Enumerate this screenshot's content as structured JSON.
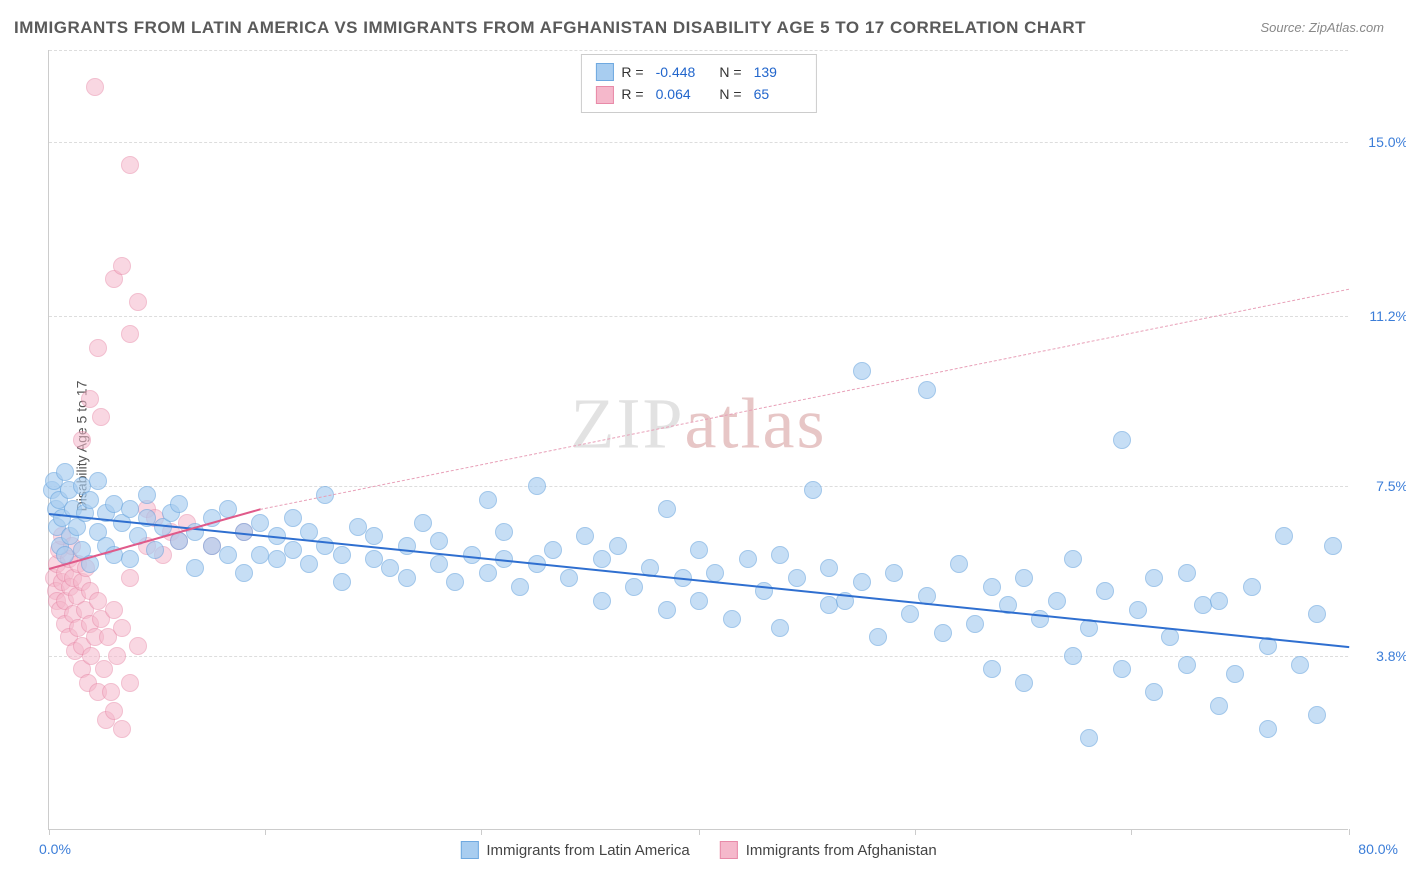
{
  "title": "IMMIGRANTS FROM LATIN AMERICA VS IMMIGRANTS FROM AFGHANISTAN DISABILITY AGE 5 TO 17 CORRELATION CHART",
  "source": "Source: ZipAtlas.com",
  "ylabel": "Disability Age 5 to 17",
  "watermark_a": "ZIP",
  "watermark_b": "atlas",
  "chart": {
    "type": "scatter",
    "xlim": [
      0,
      80
    ],
    "ylim": [
      0,
      17
    ],
    "xtick_left": "0.0%",
    "xtick_right": "80.0%",
    "xtick_positions": [
      0,
      13.3,
      26.6,
      40,
      53.3,
      66.6,
      80
    ],
    "yticks": [
      {
        "v": 15.0,
        "label": "15.0%"
      },
      {
        "v": 11.2,
        "label": "11.2%"
      },
      {
        "v": 7.5,
        "label": "7.5%"
      },
      {
        "v": 3.8,
        "label": "3.8%"
      }
    ],
    "background_color": "#ffffff",
    "grid_color": "#dddddd",
    "series": [
      {
        "id": "latin",
        "label": "Immigrants from Latin America",
        "marker_radius": 9,
        "fill": "#a8cdf0",
        "fill_opacity": 0.65,
        "stroke": "#6fa9e0",
        "R": "-0.448",
        "N": "139",
        "trend": {
          "x1": 0,
          "y1": 6.9,
          "x2": 80,
          "y2": 4.0,
          "color": "#2f6fd0",
          "width": 2
        },
        "points": [
          [
            0.2,
            7.4
          ],
          [
            0.3,
            7.6
          ],
          [
            0.4,
            7.0
          ],
          [
            0.5,
            6.6
          ],
          [
            0.6,
            7.2
          ],
          [
            0.7,
            6.2
          ],
          [
            0.8,
            6.8
          ],
          [
            1.0,
            7.8
          ],
          [
            1.0,
            6.0
          ],
          [
            1.2,
            7.4
          ],
          [
            1.3,
            6.4
          ],
          [
            1.5,
            7.0
          ],
          [
            1.7,
            6.6
          ],
          [
            2.0,
            7.5
          ],
          [
            2.0,
            6.1
          ],
          [
            2.2,
            6.9
          ],
          [
            2.5,
            7.2
          ],
          [
            2.5,
            5.8
          ],
          [
            3.0,
            6.5
          ],
          [
            3.0,
            7.6
          ],
          [
            3.5,
            6.2
          ],
          [
            3.5,
            6.9
          ],
          [
            4.0,
            7.1
          ],
          [
            4.0,
            6.0
          ],
          [
            4.5,
            6.7
          ],
          [
            5.0,
            7.0
          ],
          [
            5.0,
            5.9
          ],
          [
            5.5,
            6.4
          ],
          [
            6.0,
            6.8
          ],
          [
            6.0,
            7.3
          ],
          [
            6.5,
            6.1
          ],
          [
            7.0,
            6.6
          ],
          [
            7.5,
            6.9
          ],
          [
            8.0,
            6.3
          ],
          [
            8.0,
            7.1
          ],
          [
            9.0,
            6.5
          ],
          [
            9.0,
            5.7
          ],
          [
            10.0,
            6.8
          ],
          [
            10.0,
            6.2
          ],
          [
            11.0,
            6.0
          ],
          [
            11.0,
            7.0
          ],
          [
            12.0,
            6.5
          ],
          [
            12.0,
            5.6
          ],
          [
            13.0,
            6.7
          ],
          [
            13.0,
            6.0
          ],
          [
            14.0,
            6.4
          ],
          [
            14.0,
            5.9
          ],
          [
            15.0,
            6.8
          ],
          [
            15.0,
            6.1
          ],
          [
            16.0,
            5.8
          ],
          [
            16.0,
            6.5
          ],
          [
            17.0,
            6.2
          ],
          [
            17.0,
            7.3
          ],
          [
            18.0,
            6.0
          ],
          [
            18.0,
            5.4
          ],
          [
            19.0,
            6.6
          ],
          [
            20.0,
            5.9
          ],
          [
            20.0,
            6.4
          ],
          [
            21.0,
            5.7
          ],
          [
            22.0,
            6.2
          ],
          [
            22.0,
            5.5
          ],
          [
            23.0,
            6.7
          ],
          [
            24.0,
            5.8
          ],
          [
            24.0,
            6.3
          ],
          [
            25.0,
            5.4
          ],
          [
            26.0,
            6.0
          ],
          [
            27.0,
            7.2
          ],
          [
            27.0,
            5.6
          ],
          [
            28.0,
            5.9
          ],
          [
            28.0,
            6.5
          ],
          [
            29.0,
            5.3
          ],
          [
            30.0,
            7.5
          ],
          [
            30.0,
            5.8
          ],
          [
            31.0,
            6.1
          ],
          [
            32.0,
            5.5
          ],
          [
            33.0,
            6.4
          ],
          [
            34.0,
            5.0
          ],
          [
            34.0,
            5.9
          ],
          [
            35.0,
            6.2
          ],
          [
            36.0,
            5.3
          ],
          [
            37.0,
            5.7
          ],
          [
            38.0,
            7.0
          ],
          [
            38.0,
            4.8
          ],
          [
            39.0,
            5.5
          ],
          [
            40.0,
            6.1
          ],
          [
            40.0,
            5.0
          ],
          [
            41.0,
            5.6
          ],
          [
            42.0,
            4.6
          ],
          [
            43.0,
            5.9
          ],
          [
            44.0,
            5.2
          ],
          [
            45.0,
            6.0
          ],
          [
            45.0,
            4.4
          ],
          [
            46.0,
            5.5
          ],
          [
            47.0,
            7.4
          ],
          [
            48.0,
            4.9
          ],
          [
            48.0,
            5.7
          ],
          [
            49.0,
            5.0
          ],
          [
            50.0,
            5.4
          ],
          [
            50.0,
            10.0
          ],
          [
            51.0,
            4.2
          ],
          [
            52.0,
            5.6
          ],
          [
            53.0,
            4.7
          ],
          [
            54.0,
            9.6
          ],
          [
            54.0,
            5.1
          ],
          [
            55.0,
            4.3
          ],
          [
            56.0,
            5.8
          ],
          [
            57.0,
            4.5
          ],
          [
            58.0,
            5.3
          ],
          [
            58.0,
            3.5
          ],
          [
            59.0,
            4.9
          ],
          [
            60.0,
            5.5
          ],
          [
            60.0,
            3.2
          ],
          [
            61.0,
            4.6
          ],
          [
            62.0,
            5.0
          ],
          [
            63.0,
            3.8
          ],
          [
            63.0,
            5.9
          ],
          [
            64.0,
            4.4
          ],
          [
            64.0,
            2.0
          ],
          [
            65.0,
            5.2
          ],
          [
            66.0,
            3.5
          ],
          [
            66.0,
            8.5
          ],
          [
            67.0,
            4.8
          ],
          [
            68.0,
            5.5
          ],
          [
            68.0,
            3.0
          ],
          [
            69.0,
            4.2
          ],
          [
            70.0,
            5.6
          ],
          [
            70.0,
            3.6
          ],
          [
            71.0,
            4.9
          ],
          [
            72.0,
            5.0
          ],
          [
            72.0,
            2.7
          ],
          [
            73.0,
            3.4
          ],
          [
            74.0,
            5.3
          ],
          [
            75.0,
            4.0
          ],
          [
            75.0,
            2.2
          ],
          [
            76.0,
            6.4
          ],
          [
            77.0,
            3.6
          ],
          [
            78.0,
            4.7
          ],
          [
            78.0,
            2.5
          ],
          [
            79.0,
            6.2
          ]
        ]
      },
      {
        "id": "afghan",
        "label": "Immigrants from Afghanistan",
        "marker_radius": 9,
        "fill": "#f5b8cb",
        "fill_opacity": 0.55,
        "stroke": "#e88aa8",
        "R": "0.064",
        "N": "65",
        "trend_solid": {
          "x1": 0,
          "y1": 5.7,
          "x2": 13,
          "y2": 7.0,
          "color": "#e05a8a",
          "width": 2
        },
        "trend_dash": {
          "x1": 13,
          "y1": 7.0,
          "x2": 80,
          "y2": 11.8,
          "color": "#e8a0b8",
          "width": 1.5
        },
        "points": [
          [
            0.3,
            5.5
          ],
          [
            0.4,
            5.2
          ],
          [
            0.5,
            5.8
          ],
          [
            0.5,
            5.0
          ],
          [
            0.6,
            6.1
          ],
          [
            0.7,
            4.8
          ],
          [
            0.8,
            5.4
          ],
          [
            0.8,
            6.4
          ],
          [
            1.0,
            5.0
          ],
          [
            1.0,
            5.6
          ],
          [
            1.0,
            4.5
          ],
          [
            1.2,
            5.9
          ],
          [
            1.2,
            4.2
          ],
          [
            1.3,
            5.3
          ],
          [
            1.4,
            6.2
          ],
          [
            1.5,
            4.7
          ],
          [
            1.5,
            5.5
          ],
          [
            1.6,
            3.9
          ],
          [
            1.7,
            5.1
          ],
          [
            1.8,
            4.4
          ],
          [
            1.8,
            5.8
          ],
          [
            2.0,
            4.0
          ],
          [
            2.0,
            5.4
          ],
          [
            2.0,
            3.5
          ],
          [
            2.2,
            4.8
          ],
          [
            2.3,
            5.7
          ],
          [
            2.4,
            3.2
          ],
          [
            2.5,
            4.5
          ],
          [
            2.5,
            5.2
          ],
          [
            2.6,
            3.8
          ],
          [
            2.8,
            4.2
          ],
          [
            3.0,
            5.0
          ],
          [
            3.0,
            3.0
          ],
          [
            3.2,
            4.6
          ],
          [
            3.4,
            3.5
          ],
          [
            3.5,
            2.4
          ],
          [
            3.6,
            4.2
          ],
          [
            3.8,
            3.0
          ],
          [
            4.0,
            4.8
          ],
          [
            4.0,
            2.6
          ],
          [
            4.2,
            3.8
          ],
          [
            4.5,
            2.2
          ],
          [
            4.5,
            4.4
          ],
          [
            5.0,
            3.2
          ],
          [
            5.0,
            5.5
          ],
          [
            5.5,
            4.0
          ],
          [
            2.0,
            8.5
          ],
          [
            2.5,
            9.4
          ],
          [
            3.0,
            10.5
          ],
          [
            3.2,
            9.0
          ],
          [
            2.8,
            16.2
          ],
          [
            4.0,
            12.0
          ],
          [
            4.5,
            12.3
          ],
          [
            5.0,
            14.5
          ],
          [
            5.0,
            10.8
          ],
          [
            5.5,
            11.5
          ],
          [
            6.0,
            7.0
          ],
          [
            6.0,
            6.2
          ],
          [
            6.5,
            6.8
          ],
          [
            7.0,
            6.0
          ],
          [
            7.5,
            6.5
          ],
          [
            8.0,
            6.3
          ],
          [
            8.5,
            6.7
          ],
          [
            10.0,
            6.2
          ],
          [
            12.0,
            6.5
          ]
        ]
      }
    ],
    "legend_bottom": [
      {
        "series": "latin"
      },
      {
        "series": "afghan"
      }
    ]
  }
}
